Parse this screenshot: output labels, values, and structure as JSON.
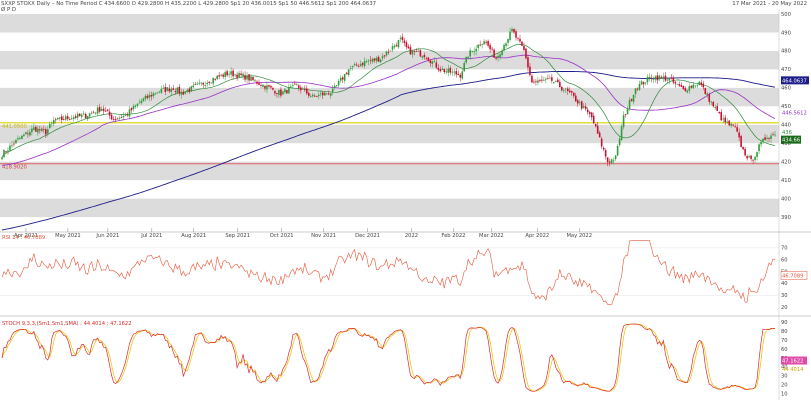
{
  "header": {
    "line1": "SXXP STOXX Daily  –  No Time Period   C 434.6600 O 429.2800 H 435.2200 L 429.2800  Sp1 20 436.0015  Sp1 50 446.5612  Sp1 200 464.0637",
    "line2": "Ø P D",
    "range": "17 Mar 2021  -  20 May 2022"
  },
  "colors": {
    "up": "#2e9d3a",
    "down": "#c8102e",
    "sma20": "#2e8b3a",
    "sma50": "#9b30c8",
    "sma200": "#1c1c8a",
    "band": "#dcdcdc",
    "yellow_line": "#d8d200",
    "red_line": "#e06060",
    "rsi": "#e8563a",
    "stoch_k": "#e0282a",
    "stoch_d": "#e8c400"
  },
  "chart_data": [
    {
      "type": "candlestick",
      "title": "",
      "x_ticks": [
        "Apr 2021",
        "May 2021",
        "Jun 2021",
        "Jul 2021",
        "Aug 2021",
        "Sep 2021",
        "Oct 2021",
        "Nov 2021",
        "Dec 2021",
        "2022",
        "Feb 2022",
        "Mar 2022",
        "Apr 2022",
        "May 2022"
      ],
      "y_ticks": [
        390,
        400,
        410,
        420,
        430,
        440,
        450,
        460,
        470,
        480,
        490,
        500
      ],
      "ylim": [
        383,
        500
      ],
      "horizontal_lines": [
        {
          "label": "441.0500",
          "value": 441.05
        },
        {
          "label": "418.9020",
          "value": 418.9
        }
      ],
      "last_values": [
        {
          "name": "Sp1 200",
          "label": "464.0637",
          "value": 464.06
        },
        {
          "name": "Sp1 50",
          "label": "446.5612",
          "value": 446.56
        },
        {
          "name": "Sp1 20",
          "label": "436",
          "value": 436.0
        },
        {
          "name": "close",
          "label": "434.66",
          "value": 434.66
        }
      ],
      "series": [
        {
          "name": "Close",
          "values": [
            [
              0,
              424
            ],
            [
              8,
              432
            ],
            [
              16,
              438
            ],
            [
              22,
              436
            ],
            [
              26,
              442
            ],
            [
              34,
              444
            ],
            [
              42,
              445
            ],
            [
              50,
              449
            ],
            [
              56,
              443
            ],
            [
              62,
              445
            ],
            [
              70,
              453
            ],
            [
              78,
              458
            ],
            [
              86,
              460
            ],
            [
              90,
              457
            ],
            [
              98,
              461
            ],
            [
              106,
              465
            ],
            [
              114,
              468
            ],
            [
              122,
              466
            ],
            [
              130,
              462
            ],
            [
              140,
              457
            ],
            [
              148,
              461
            ],
            [
              156,
              455
            ],
            [
              166,
              458
            ],
            [
              174,
              470
            ],
            [
              182,
              474
            ],
            [
              190,
              476
            ],
            [
              200,
              486
            ],
            [
              204,
              480
            ],
            [
              212,
              478
            ],
            [
              220,
              470
            ],
            [
              230,
              467
            ],
            [
              234,
              478
            ],
            [
              242,
              486
            ],
            [
              248,
              476
            ],
            [
              256,
              491
            ],
            [
              262,
              480
            ],
            [
              266,
              463
            ],
            [
              276,
              464
            ],
            [
              286,
              456
            ],
            [
              296,
              444
            ],
            [
              304,
              420
            ],
            [
              308,
              422
            ],
            [
              312,
              444
            ],
            [
              318,
              460
            ],
            [
              326,
              466
            ],
            [
              334,
              465
            ],
            [
              342,
              459
            ],
            [
              350,
              463
            ],
            [
              356,
              452
            ],
            [
              362,
              442
            ],
            [
              368,
              438
            ],
            [
              372,
              426
            ],
            [
              376,
              420
            ],
            [
              380,
              428
            ],
            [
              384,
              434
            ],
            [
              388,
              434.66
            ]
          ]
        }
      ]
    },
    {
      "type": "line",
      "title": "",
      "series_label": "RSI 14 : 46.7089",
      "y_ticks": [
        20,
        30,
        40,
        50,
        60,
        70
      ],
      "ylim": [
        15,
        80
      ],
      "last_value": {
        "label": "46.7089",
        "value": 46.71
      }
    },
    {
      "type": "line",
      "title": "",
      "series_label": "STOCH 9,3,3,(Sm1,Sm1,SMA) : 44.4014 ; 47.1622",
      "y_ticks": [
        10,
        20,
        30,
        40,
        50,
        60,
        70,
        80,
        90
      ],
      "ylim": [
        5,
        95
      ],
      "last_values": [
        {
          "label": "47.1622",
          "value": 47.16
        },
        {
          "label": "44.4014",
          "value": 44.4
        }
      ]
    }
  ]
}
